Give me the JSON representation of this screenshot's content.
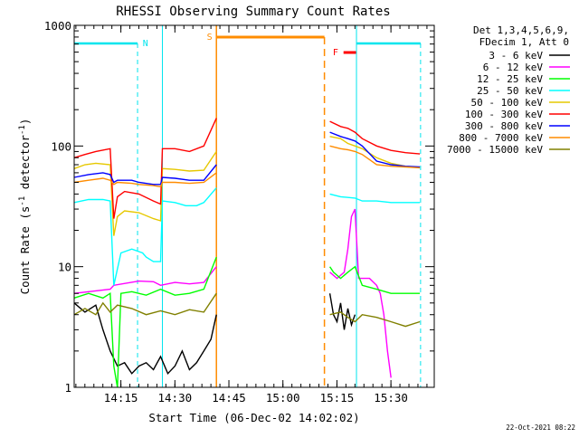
{
  "chart_data": {
    "type": "line",
    "title": "RHESSI Observing Summary Count Rates",
    "xlabel": "Start Time (06-Dec-02 14:02:02)",
    "ylabel_main": "Count Rate (s",
    "ylabel_sup1": "-1",
    "ylabel_mid": " detector",
    "ylabel_sup2": "-1",
    "ylabel_end": ")",
    "yscale": "log",
    "ylim": [
      1,
      1000
    ],
    "xlim_minutes": [
      0,
      100
    ],
    "x_ticks": [
      {
        "label": "14:15",
        "minute": 12.97
      },
      {
        "label": "14:30",
        "minute": 27.97
      },
      {
        "label": "14:45",
        "minute": 42.97
      },
      {
        "label": "15:00",
        "minute": 57.97
      },
      {
        "label": "15:15",
        "minute": 72.97
      },
      {
        "label": "15:30",
        "minute": 87.97
      }
    ],
    "y_ticks": [
      {
        "label": "1",
        "value": 1
      },
      {
        "label": "10",
        "value": 10
      },
      {
        "label": "100",
        "value": 100
      },
      {
        "label": "1000",
        "value": 1000
      }
    ],
    "legend_header": [
      "Det 1,3,4,5,6,9,",
      "FDecim 1, Att 0"
    ],
    "series": [
      {
        "name": "3 - 6 keV",
        "color": "#000000",
        "segments": [
          [
            [
              0,
              5
            ],
            [
              3,
              4.2
            ],
            [
              6,
              4.8
            ],
            [
              8,
              3
            ],
            [
              10,
              2
            ],
            [
              12,
              1.5
            ],
            [
              14,
              1.6
            ],
            [
              16,
              1.3
            ],
            [
              18,
              1.5
            ],
            [
              20,
              1.6
            ],
            [
              22,
              1.4
            ],
            [
              24,
              1.8
            ],
            [
              26,
              1.3
            ],
            [
              28,
              1.5
            ],
            [
              30,
              2
            ],
            [
              32,
              1.4
            ],
            [
              34,
              1.6
            ],
            [
              36,
              2
            ],
            [
              38,
              2.5
            ],
            [
              39.5,
              4
            ]
          ],
          [
            [
              71,
              6
            ],
            [
              72,
              4
            ],
            [
              73,
              3.5
            ],
            [
              74,
              5
            ],
            [
              75,
              3
            ],
            [
              76,
              4.5
            ],
            [
              77,
              3.3
            ],
            [
              78,
              4
            ]
          ]
        ]
      },
      {
        "name": "6 - 12 keV",
        "color": "#ff00ff",
        "segments": [
          [
            [
              0,
              6
            ],
            [
              10,
              6.5
            ],
            [
              11,
              7
            ],
            [
              18,
              7.6
            ],
            [
              22,
              7.5
            ],
            [
              24,
              7
            ],
            [
              28,
              7.4
            ],
            [
              32,
              7.2
            ],
            [
              36,
              7.4
            ],
            [
              39.5,
              10
            ]
          ],
          [
            [
              71,
              9
            ],
            [
              73,
              8
            ],
            [
              75,
              9
            ],
            [
              76,
              14
            ],
            [
              77,
              26
            ],
            [
              78,
              30
            ],
            [
              79,
              8
            ],
            [
              82,
              8
            ],
            [
              84,
              7
            ],
            [
              85,
              6
            ],
            [
              86,
              4
            ],
            [
              87,
              2
            ],
            [
              88,
              1.2
            ]
          ]
        ]
      },
      {
        "name": "12 - 25 keV",
        "color": "#00ff00",
        "segments": [
          [
            [
              0,
              5.5
            ],
            [
              4,
              6
            ],
            [
              8,
              5.5
            ],
            [
              10,
              6
            ],
            [
              11,
              1.5
            ],
            [
              12,
              1
            ],
            [
              13,
              6
            ],
            [
              16,
              6.2
            ],
            [
              20,
              5.8
            ],
            [
              24,
              6.5
            ],
            [
              28,
              5.8
            ],
            [
              32,
              6
            ],
            [
              36,
              6.5
            ],
            [
              39.5,
              12
            ]
          ],
          [
            [
              71,
              10
            ],
            [
              72,
              9
            ],
            [
              74,
              8
            ],
            [
              76,
              9
            ],
            [
              78,
              10
            ],
            [
              80,
              7
            ],
            [
              84,
              6.5
            ],
            [
              88,
              6
            ],
            [
              92,
              6
            ],
            [
              96,
              6
            ]
          ]
        ]
      },
      {
        "name": "25 - 50 keV",
        "color": "#00ffff",
        "segments": [
          [
            [
              0,
              34
            ],
            [
              4,
              36
            ],
            [
              8,
              36
            ],
            [
              10,
              35
            ],
            [
              11,
              7
            ],
            [
              13,
              13
            ],
            [
              16,
              14
            ],
            [
              19,
              13
            ],
            [
              20,
              12
            ],
            [
              22,
              11
            ],
            [
              24,
              11
            ],
            [
              24.5,
              35
            ],
            [
              28,
              34
            ],
            [
              31,
              32
            ],
            [
              34,
              32
            ],
            [
              36,
              34
            ],
            [
              39.5,
              45
            ]
          ],
          [
            [
              71,
              40
            ],
            [
              74,
              38
            ],
            [
              78,
              37
            ],
            [
              80,
              35
            ],
            [
              84,
              35
            ],
            [
              88,
              34
            ],
            [
              92,
              34
            ],
            [
              96,
              34
            ]
          ]
        ]
      },
      {
        "name": "50 - 100 keV",
        "color": "#e6c800",
        "segments": [
          [
            [
              0,
              65
            ],
            [
              3,
              70
            ],
            [
              6,
              72
            ],
            [
              10,
              70
            ],
            [
              11,
              18
            ],
            [
              12,
              26
            ],
            [
              14,
              29
            ],
            [
              18,
              28
            ],
            [
              22,
              25
            ],
            [
              24,
              24
            ],
            [
              24.5,
              65
            ],
            [
              28,
              64
            ],
            [
              32,
              62
            ],
            [
              36,
              63
            ],
            [
              39.5,
              90
            ]
          ],
          [
            [
              71,
              120
            ],
            [
              74,
              115
            ],
            [
              76,
              105
            ],
            [
              78,
              100
            ],
            [
              80,
              95
            ],
            [
              84,
              80
            ],
            [
              88,
              72
            ],
            [
              92,
              68
            ],
            [
              96,
              66
            ]
          ]
        ]
      },
      {
        "name": "100 - 300 keV",
        "color": "#ff0000",
        "segments": [
          [
            [
              0,
              80
            ],
            [
              3,
              85
            ],
            [
              6,
              90
            ],
            [
              10,
              95
            ],
            [
              11,
              25
            ],
            [
              12,
              38
            ],
            [
              14,
              42
            ],
            [
              18,
              40
            ],
            [
              22,
              35
            ],
            [
              24,
              33
            ],
            [
              24.5,
              95
            ],
            [
              28,
              95
            ],
            [
              32,
              90
            ],
            [
              36,
              100
            ],
            [
              39.5,
              170
            ]
          ],
          [
            [
              71,
              160
            ],
            [
              74,
              145
            ],
            [
              76,
              140
            ],
            [
              78,
              130
            ],
            [
              80,
              115
            ],
            [
              84,
              100
            ],
            [
              88,
              92
            ],
            [
              92,
              88
            ],
            [
              96,
              86
            ]
          ]
        ]
      },
      {
        "name": "300 - 800 keV",
        "color": "#0000ff",
        "segments": [
          [
            [
              0,
              55
            ],
            [
              4,
              58
            ],
            [
              8,
              60
            ],
            [
              10,
              58
            ],
            [
              11,
              50
            ],
            [
              12,
              52
            ],
            [
              16,
              52
            ],
            [
              18,
              50
            ],
            [
              22,
              48
            ],
            [
              24,
              48
            ],
            [
              24.5,
              55
            ],
            [
              28,
              54
            ],
            [
              32,
              52
            ],
            [
              36,
              52
            ],
            [
              39.5,
              70
            ]
          ],
          [
            [
              71,
              130
            ],
            [
              74,
              120
            ],
            [
              76,
              115
            ],
            [
              78,
              110
            ],
            [
              80,
              100
            ],
            [
              84,
              75
            ],
            [
              88,
              70
            ],
            [
              92,
              68
            ],
            [
              96,
              67
            ]
          ]
        ]
      },
      {
        "name": "800 - 7000 keV",
        "color": "#ff8c00",
        "segments": [
          [
            [
              0,
              50
            ],
            [
              4,
              52
            ],
            [
              8,
              54
            ],
            [
              10,
              52
            ],
            [
              11,
              48
            ],
            [
              12,
              50
            ],
            [
              16,
              49
            ],
            [
              18,
              48
            ],
            [
              22,
              47
            ],
            [
              24,
              46
            ],
            [
              24.5,
              50
            ],
            [
              28,
              50
            ],
            [
              32,
              49
            ],
            [
              36,
              50
            ],
            [
              39.5,
              60
            ]
          ],
          [
            [
              71,
              100
            ],
            [
              74,
              95
            ],
            [
              76,
              93
            ],
            [
              78,
              90
            ],
            [
              80,
              85
            ],
            [
              84,
              70
            ],
            [
              88,
              68
            ],
            [
              92,
              67
            ],
            [
              96,
              66
            ]
          ]
        ]
      },
      {
        "name": "7000 - 15000 keV",
        "color": "#808000",
        "segments": [
          [
            [
              0,
              4
            ],
            [
              3,
              4.5
            ],
            [
              6,
              4
            ],
            [
              8,
              5
            ],
            [
              10,
              4.2
            ],
            [
              12,
              4.8
            ],
            [
              16,
              4.5
            ],
            [
              20,
              4
            ],
            [
              24,
              4.3
            ],
            [
              28,
              4
            ],
            [
              32,
              4.4
            ],
            [
              36,
              4.2
            ],
            [
              39.5,
              6
            ]
          ],
          [
            [
              71,
              4
            ],
            [
              74,
              4.2
            ],
            [
              76,
              3.8
            ],
            [
              78,
              3.5
            ],
            [
              80,
              4
            ],
            [
              84,
              3.8
            ],
            [
              88,
              3.5
            ],
            [
              92,
              3.2
            ],
            [
              96,
              3.5
            ]
          ]
        ]
      }
    ],
    "annotations": [
      {
        "label": "N",
        "color": "#00e5ee",
        "minute": 17.6,
        "text_minute": 19.8
      },
      {
        "label": "S",
        "color": "#ff8c00",
        "minute": 39.5,
        "text_minute": 37.6
      },
      {
        "label": "F",
        "color": "#ff0000",
        "minute": 75,
        "text_minute": 72.6
      }
    ],
    "footer_date": "22-Oct-2021 08:22"
  }
}
